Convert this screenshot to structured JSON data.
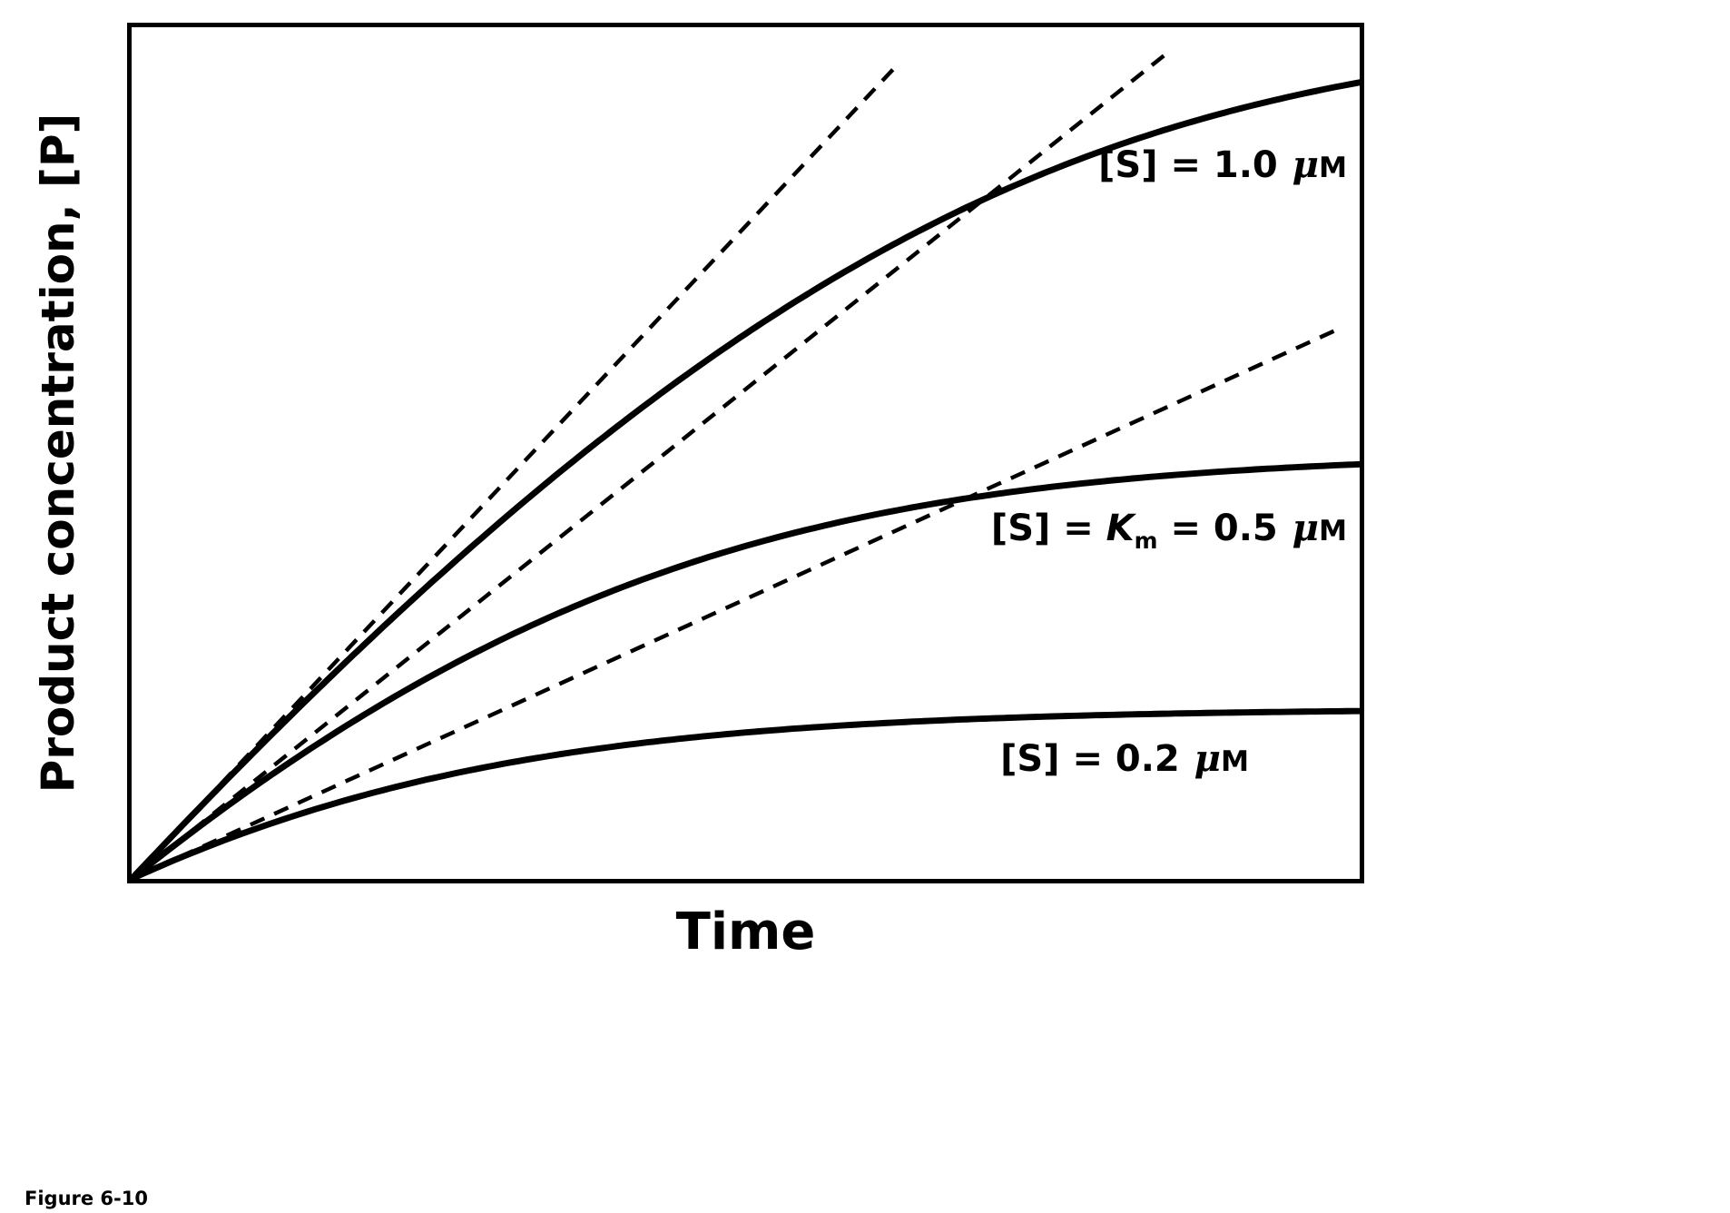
{
  "page": {
    "background": "#ffffff",
    "caption": "Figure 6-10"
  },
  "chart_data": {
    "type": "line",
    "title": "",
    "xlabel": "Time",
    "ylabel": "Product concentration, [P]",
    "x_range": [
      0,
      1
    ],
    "y_range": [
      0,
      1
    ],
    "grid": false,
    "ticks": false,
    "legend": "inline curve labels at right",
    "line_color": "#000000",
    "units_note": "axes are qualitative (no tick labels); values normalized to full axis scale",
    "km": 0.5,
    "vmax": 2.3,
    "series": [
      {
        "name": "[S] = 1.0 μM",
        "s0": 1.0,
        "initial_velocity_slope": 1.533,
        "plateau": 1.0,
        "style": "solid",
        "samples_t": [
          0,
          0.1,
          0.2,
          0.3,
          0.4,
          0.5,
          0.6,
          0.7,
          0.8,
          0.9,
          1.0
        ],
        "samples_p": [
          0,
          0.149,
          0.289,
          0.419,
          0.536,
          0.64,
          0.728,
          0.8,
          0.859,
          0.903,
          0.935
        ]
      },
      {
        "name": "[S] = Km = 0.5 μM",
        "s0": 0.5,
        "initial_velocity_slope": 1.15,
        "plateau": 0.5,
        "style": "solid",
        "samples_t": [
          0,
          0.1,
          0.2,
          0.3,
          0.4,
          0.5,
          0.6,
          0.7,
          0.8,
          0.9,
          1.0
        ],
        "samples_p": [
          0,
          0.108,
          0.201,
          0.28,
          0.341,
          0.39,
          0.426,
          0.451,
          0.467,
          0.479,
          0.487
        ]
      },
      {
        "name": "[S] = 0.2 μM",
        "s0": 0.2,
        "initial_velocity_slope": 0.657,
        "plateau": 0.2,
        "style": "solid",
        "samples_t": [
          0,
          0.1,
          0.2,
          0.3,
          0.4,
          0.5,
          0.6,
          0.7,
          0.8,
          0.9,
          1.0
        ],
        "samples_p": [
          0,
          0.058,
          0.102,
          0.134,
          0.156,
          0.172,
          0.182,
          0.188,
          0.192,
          0.195,
          0.197
        ]
      }
    ],
    "tangents": [
      {
        "series": 0,
        "slope": 1.533,
        "x_end": 0.625,
        "style": "dashed"
      },
      {
        "series": 1,
        "slope": 1.15,
        "x_end": 0.845,
        "style": "dashed"
      },
      {
        "series": 2,
        "slope": 0.657,
        "x_end": 0.98,
        "style": "dashed"
      }
    ],
    "labels": {
      "s1": {
        "pre": "[S] = 1.0 ",
        "mu": "μ",
        "unit": "M"
      },
      "s2": {
        "pre": "[S] = ",
        "k": "K",
        "k_sub": "m",
        "mid": " = 0.5 ",
        "mu": "μ",
        "unit": "M"
      },
      "s3": {
        "pre": "[S] = 0.2 ",
        "mu": "μ",
        "unit": "M"
      }
    }
  }
}
